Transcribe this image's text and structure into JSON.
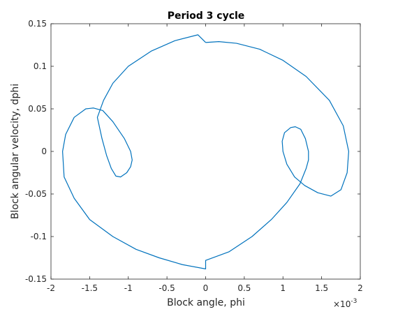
{
  "chart_data": {
    "type": "line",
    "title": "Period 3 cycle",
    "xlabel": "Block angle, phi",
    "ylabel": "Block angular velocity, dphi",
    "x_multiplier_base": "×10",
    "x_multiplier_exp": "-3",
    "xlim": [
      -0.002,
      0.002
    ],
    "ylim": [
      -0.15,
      0.15
    ],
    "x_ticks": [
      -0.002,
      -0.0015,
      -0.001,
      -0.0005,
      0,
      0.0005,
      0.001,
      0.0015,
      0.002
    ],
    "x_tick_labels": [
      "-2",
      "-1.5",
      "-1",
      "-0.5",
      "0",
      "0.5",
      "1",
      "1.5",
      "2"
    ],
    "y_ticks": [
      -0.15,
      -0.1,
      -0.05,
      0,
      0.05,
      0.1,
      0.15
    ],
    "y_tick_labels": [
      "-0.15",
      "-0.1",
      "-0.05",
      "0",
      "0.05",
      "0.1",
      "0.15"
    ],
    "grid": false,
    "line_color": "#0072BD",
    "series": [
      {
        "x": [
          0.0,
          0.00017,
          0.0004,
          0.0007,
          0.001,
          0.0013,
          0.0016,
          0.00178,
          0.00185,
          0.00183,
          0.00175,
          0.00162,
          0.00145,
          0.00128,
          0.00115,
          0.00105,
          0.001,
          0.00099,
          0.00102,
          0.0011,
          0.00116,
          0.00123,
          0.00129,
          0.00133,
          0.00133,
          0.0013,
          0.00122,
          0.00105,
          0.00085,
          0.0006,
          0.0003,
          0.0,
          0.0,
          -0.0003,
          -0.0006,
          -0.0009,
          -0.0012,
          -0.0015,
          -0.0017,
          -0.00183,
          -0.00185,
          -0.00181,
          -0.0017,
          -0.00155,
          -0.00145,
          -0.00133,
          -0.0012,
          -0.00105,
          -0.00097,
          -0.00095,
          -0.00097,
          -0.00102,
          -0.0011,
          -0.00116,
          -0.00122,
          -0.00128,
          -0.00134,
          -0.0014,
          -0.00132,
          -0.0012,
          -0.001,
          -0.0007,
          -0.0004,
          -0.0001,
          0.0
        ],
        "y": [
          0.128,
          0.129,
          0.127,
          0.12,
          0.107,
          0.088,
          0.06,
          0.03,
          0.0,
          -0.025,
          -0.045,
          -0.0525,
          -0.0485,
          -0.04,
          -0.03,
          -0.015,
          0.0,
          0.012,
          0.022,
          0.028,
          0.029,
          0.026,
          0.015,
          0.0,
          -0.01,
          -0.02,
          -0.038,
          -0.06,
          -0.08,
          -0.1,
          -0.118,
          -0.128,
          -0.138,
          -0.133,
          -0.125,
          -0.115,
          -0.1,
          -0.08,
          -0.055,
          -0.03,
          0.0,
          0.02,
          0.04,
          0.05,
          0.051,
          0.048,
          0.035,
          0.015,
          0.0,
          -0.01,
          -0.018,
          -0.025,
          -0.03,
          -0.029,
          -0.02,
          -0.005,
          0.015,
          0.04,
          0.06,
          0.08,
          0.1,
          0.118,
          0.13,
          0.137,
          0.128
        ]
      }
    ]
  }
}
